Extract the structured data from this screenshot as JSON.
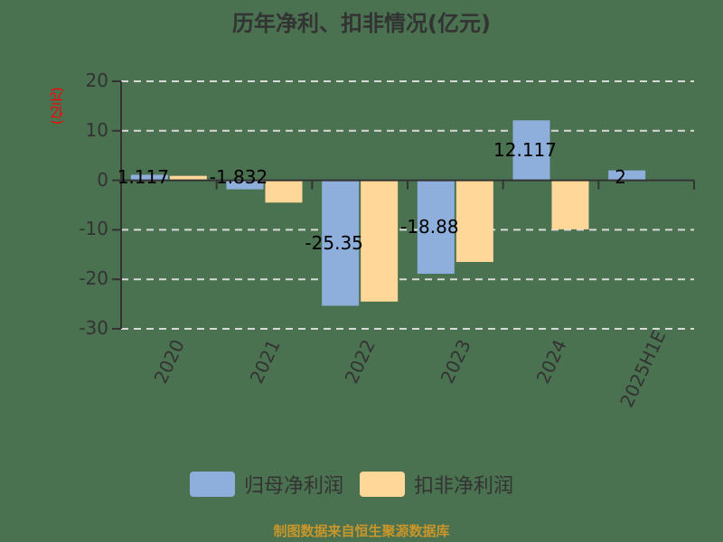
{
  "title": "历年净利、扣非情况(亿元)",
  "y_axis_unit": "(亿元)",
  "legend": [
    {
      "label": "归母净利润",
      "color": "#8eaedb"
    },
    {
      "label": "扣非净利润",
      "color": "#ffd899"
    }
  ],
  "footer": "制图数据来自恒生聚源数据库",
  "y_ticks": [
    "20",
    "10",
    "0",
    "-10",
    "-20",
    "-30"
  ],
  "x_ticks": [
    "2020",
    "2021",
    "2022",
    "2023",
    "2024",
    "2025H1E"
  ],
  "data_labels": [
    "1.117",
    "-1.832",
    "-25.35",
    "-18.88",
    "12.117",
    "2"
  ],
  "colors": {
    "background": "#4a7150",
    "series1": "#8eaedb",
    "series2": "#ffd899",
    "grid": "#d9d9d9",
    "axis": "#333333",
    "unit_label": "#ff0000",
    "footer": "#c8962a"
  },
  "chart_data": {
    "type": "bar",
    "title": "历年净利、扣非情况(亿元)",
    "xlabel": "",
    "ylabel": "(亿元)",
    "categories": [
      "2020",
      "2021",
      "2022",
      "2023",
      "2024",
      "2025H1E"
    ],
    "series": [
      {
        "name": "归母净利润",
        "values": [
          1.117,
          -1.832,
          -25.35,
          -18.88,
          12.117,
          2
        ]
      },
      {
        "name": "扣非净利润",
        "values": [
          0.9,
          -4.5,
          -24.5,
          -16.5,
          -9.9,
          0.1
        ]
      }
    ],
    "data_labels_series1": [
      "1.117",
      "-1.832",
      "-25.35",
      "-18.88",
      "12.117",
      "2"
    ],
    "ylim": [
      -30,
      20
    ],
    "y_ticks": [
      20,
      10,
      0,
      -10,
      -20,
      -30
    ],
    "grid": "horizontal dashed",
    "legend_position": "bottom"
  }
}
